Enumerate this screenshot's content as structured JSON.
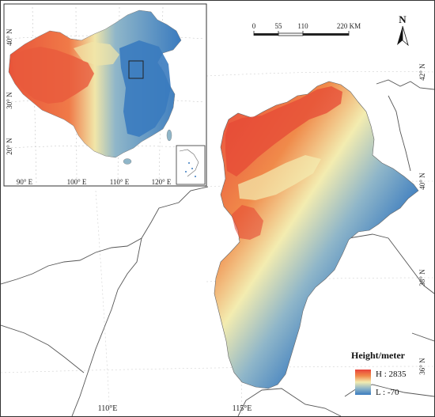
{
  "scale_bar": {
    "ticks": [
      "0",
      "55",
      "110",
      "220 KM"
    ]
  },
  "north_arrow": {
    "label": "N"
  },
  "legend": {
    "title": "Height/meter",
    "high_label": "H : 2835",
    "low_label": "L : -70",
    "high_color": "#e8423a",
    "mid_color": "#f3ecb0",
    "low_color": "#3a7bbf"
  },
  "main_map": {
    "bottom_labels": [
      "110°E",
      "115°E"
    ],
    "right_labels": [
      "42° N",
      "40° N",
      "38° N",
      "36° N"
    ]
  },
  "inset_map": {
    "bottom_labels": [
      "90° E",
      "100° E",
      "110° E",
      "120° E"
    ],
    "left_labels": [
      "40° N",
      "30° N",
      "20° N"
    ]
  }
}
